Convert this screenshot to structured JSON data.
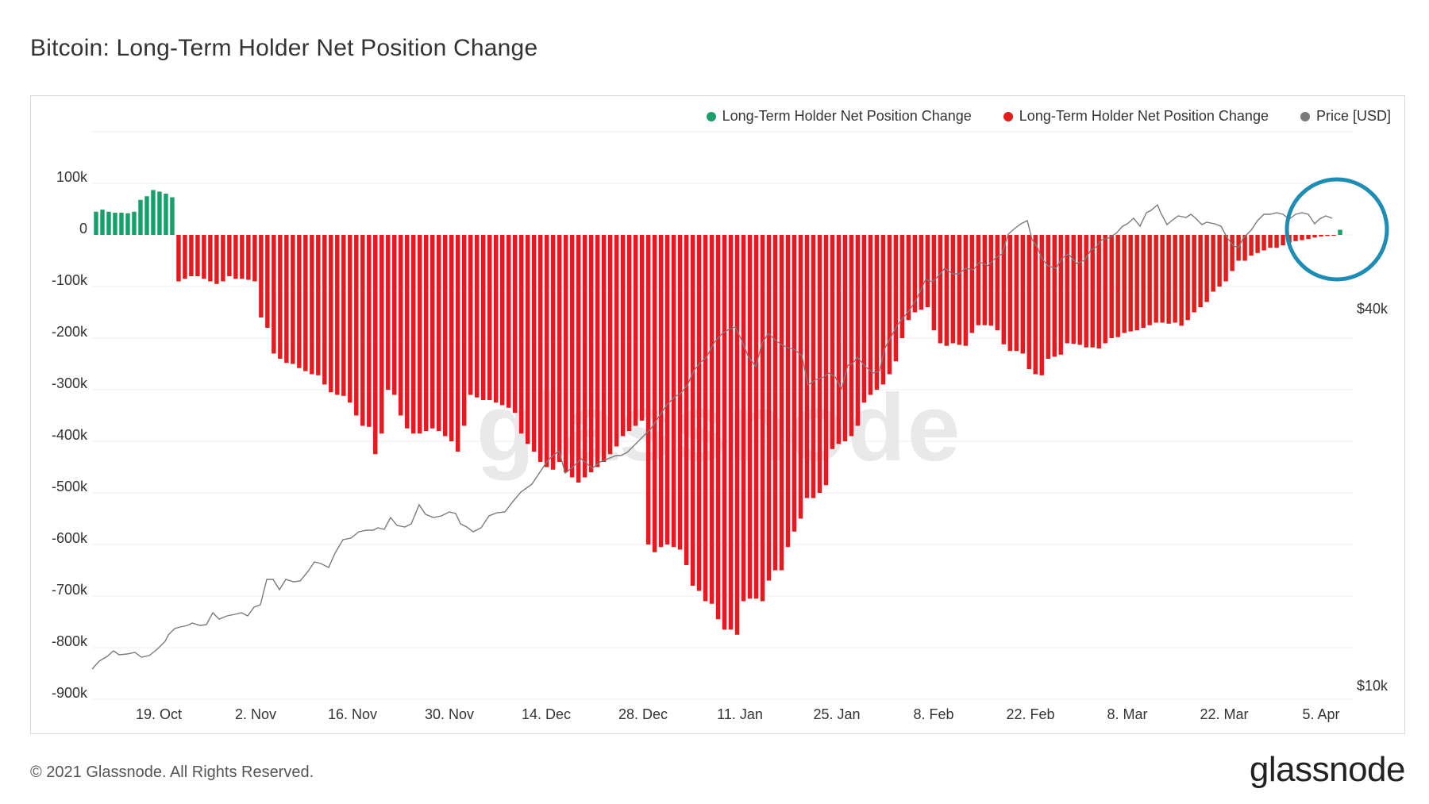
{
  "title": "Bitcoin: Long-Term Holder Net Position Change",
  "footer": {
    "copyright": "© 2021 Glassnode. All Rights Reserved.",
    "brand": "glassnode"
  },
  "watermark": "glassnode",
  "colors": {
    "positive": "#1a9f6b",
    "negative": "#e21b1b",
    "price": "#7a7a7a",
    "highlight": "#1f8db3",
    "grid": "#ececec"
  },
  "legend": [
    {
      "label": "Long-Term Holder Net Position Change",
      "color": "#1a9f6b"
    },
    {
      "label": "Long-Term Holder Net Position Change",
      "color": "#e21b1b"
    },
    {
      "label": "Price [USD]",
      "color": "#7a7a7a"
    }
  ],
  "chart_data": {
    "type": "bar",
    "yaxis_left": {
      "ticks": [
        "100k",
        "0",
        "-100k",
        "-200k",
        "-300k",
        "-400k",
        "-500k",
        "-600k",
        "-700k",
        "-800k",
        "-900k"
      ],
      "range": [
        -900000,
        100000
      ]
    },
    "yaxis_right": {
      "ticks": [
        "$40k",
        "$10k"
      ],
      "log_scale": true
    },
    "x_ticks": [
      "19. Oct",
      "2. Nov",
      "16. Nov",
      "30. Nov",
      "14. Dec",
      "28. Dec",
      "11. Jan",
      "25. Jan",
      "8. Feb",
      "22. Feb",
      "8. Mar",
      "22. Mar",
      "5. Apr"
    ],
    "grid": true,
    "legend_position": "top-right",
    "start_date": "2020-10-10",
    "end_date": "2021-04-08",
    "net_position_change": [
      45000,
      49000,
      45000,
      43000,
      43000,
      42000,
      45000,
      68000,
      75000,
      87000,
      84000,
      80000,
      73000,
      -90000,
      -85000,
      -80000,
      -80000,
      -85000,
      -90000,
      -95000,
      -90000,
      -80000,
      -85000,
      -85000,
      -87000,
      -90000,
      -160000,
      -180000,
      -230000,
      -240000,
      -248000,
      -250000,
      -258000,
      -264000,
      -270000,
      -272000,
      -290000,
      -305000,
      -310000,
      -312000,
      -325000,
      -350000,
      -370000,
      -372000,
      -425000,
      -385000,
      -300000,
      -310000,
      -350000,
      -375000,
      -385000,
      -385000,
      -380000,
      -375000,
      -380000,
      -390000,
      -400000,
      -420000,
      -370000,
      -310000,
      -315000,
      -320000,
      -320000,
      -325000,
      -330000,
      -335000,
      -345000,
      -385000,
      -405000,
      -420000,
      -440000,
      -450000,
      -455000,
      -440000,
      -460000,
      -470000,
      -480000,
      -470000,
      -460000,
      -450000,
      -440000,
      -425000,
      -410000,
      -390000,
      -380000,
      -370000,
      -360000,
      -600000,
      -615000,
      -605000,
      -600000,
      -605000,
      -610000,
      -640000,
      -680000,
      -690000,
      -710000,
      -715000,
      -745000,
      -765000,
      -765000,
      -775000,
      -710000,
      -705000,
      -705000,
      -710000,
      -670000,
      -650000,
      -650000,
      -605000,
      -575000,
      -550000,
      -510000,
      -510000,
      -500000,
      -485000,
      -415000,
      -405000,
      -400000,
      -390000,
      -370000,
      -325000,
      -310000,
      -300000,
      -290000,
      -270000,
      -245000,
      -200000,
      -165000,
      -150000,
      -145000,
      -140000,
      -185000,
      -210000,
      -215000,
      -210000,
      -213000,
      -215000,
      -190000,
      -175000,
      -175000,
      -176000,
      -185000,
      -212000,
      -225000,
      -225000,
      -230000,
      -260000,
      -270000,
      -272000,
      -240000,
      -236000,
      -232000,
      -210000,
      -211000,
      -213000,
      -218000,
      -218000,
      -220000,
      -210000,
      -200000,
      -198000,
      -190000,
      -187000,
      -185000,
      -180000,
      -175000,
      -170000,
      -170000,
      -172000,
      -170000,
      -176000,
      -165000,
      -150000,
      -140000,
      -130000,
      -110000,
      -100000,
      -90000,
      -70000,
      -50000,
      -50000,
      -40000,
      -35000,
      -30000,
      -25000,
      -25000,
      -20000,
      -15000,
      -12000,
      -10000,
      -8000,
      -5000,
      -3000,
      -2000,
      -1500,
      10000
    ]
  }
}
